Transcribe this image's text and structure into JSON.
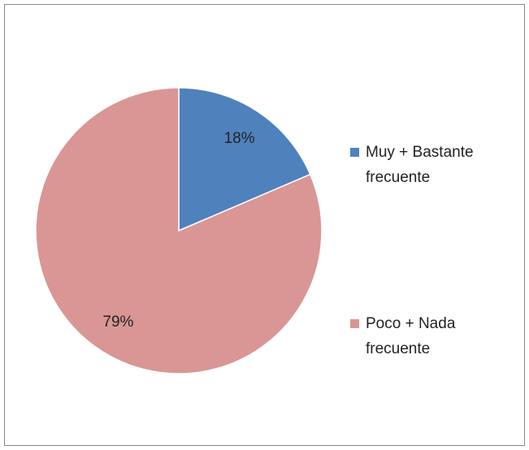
{
  "chart_data": {
    "type": "pie",
    "categories": [
      "Muy + Bastante frecuente",
      "Poco + Nada frecuente"
    ],
    "values": [
      18,
      79
    ],
    "value_labels": [
      "18%",
      "79%"
    ],
    "colors": [
      "#4f81bd",
      "#d99694"
    ],
    "legend": "right"
  }
}
